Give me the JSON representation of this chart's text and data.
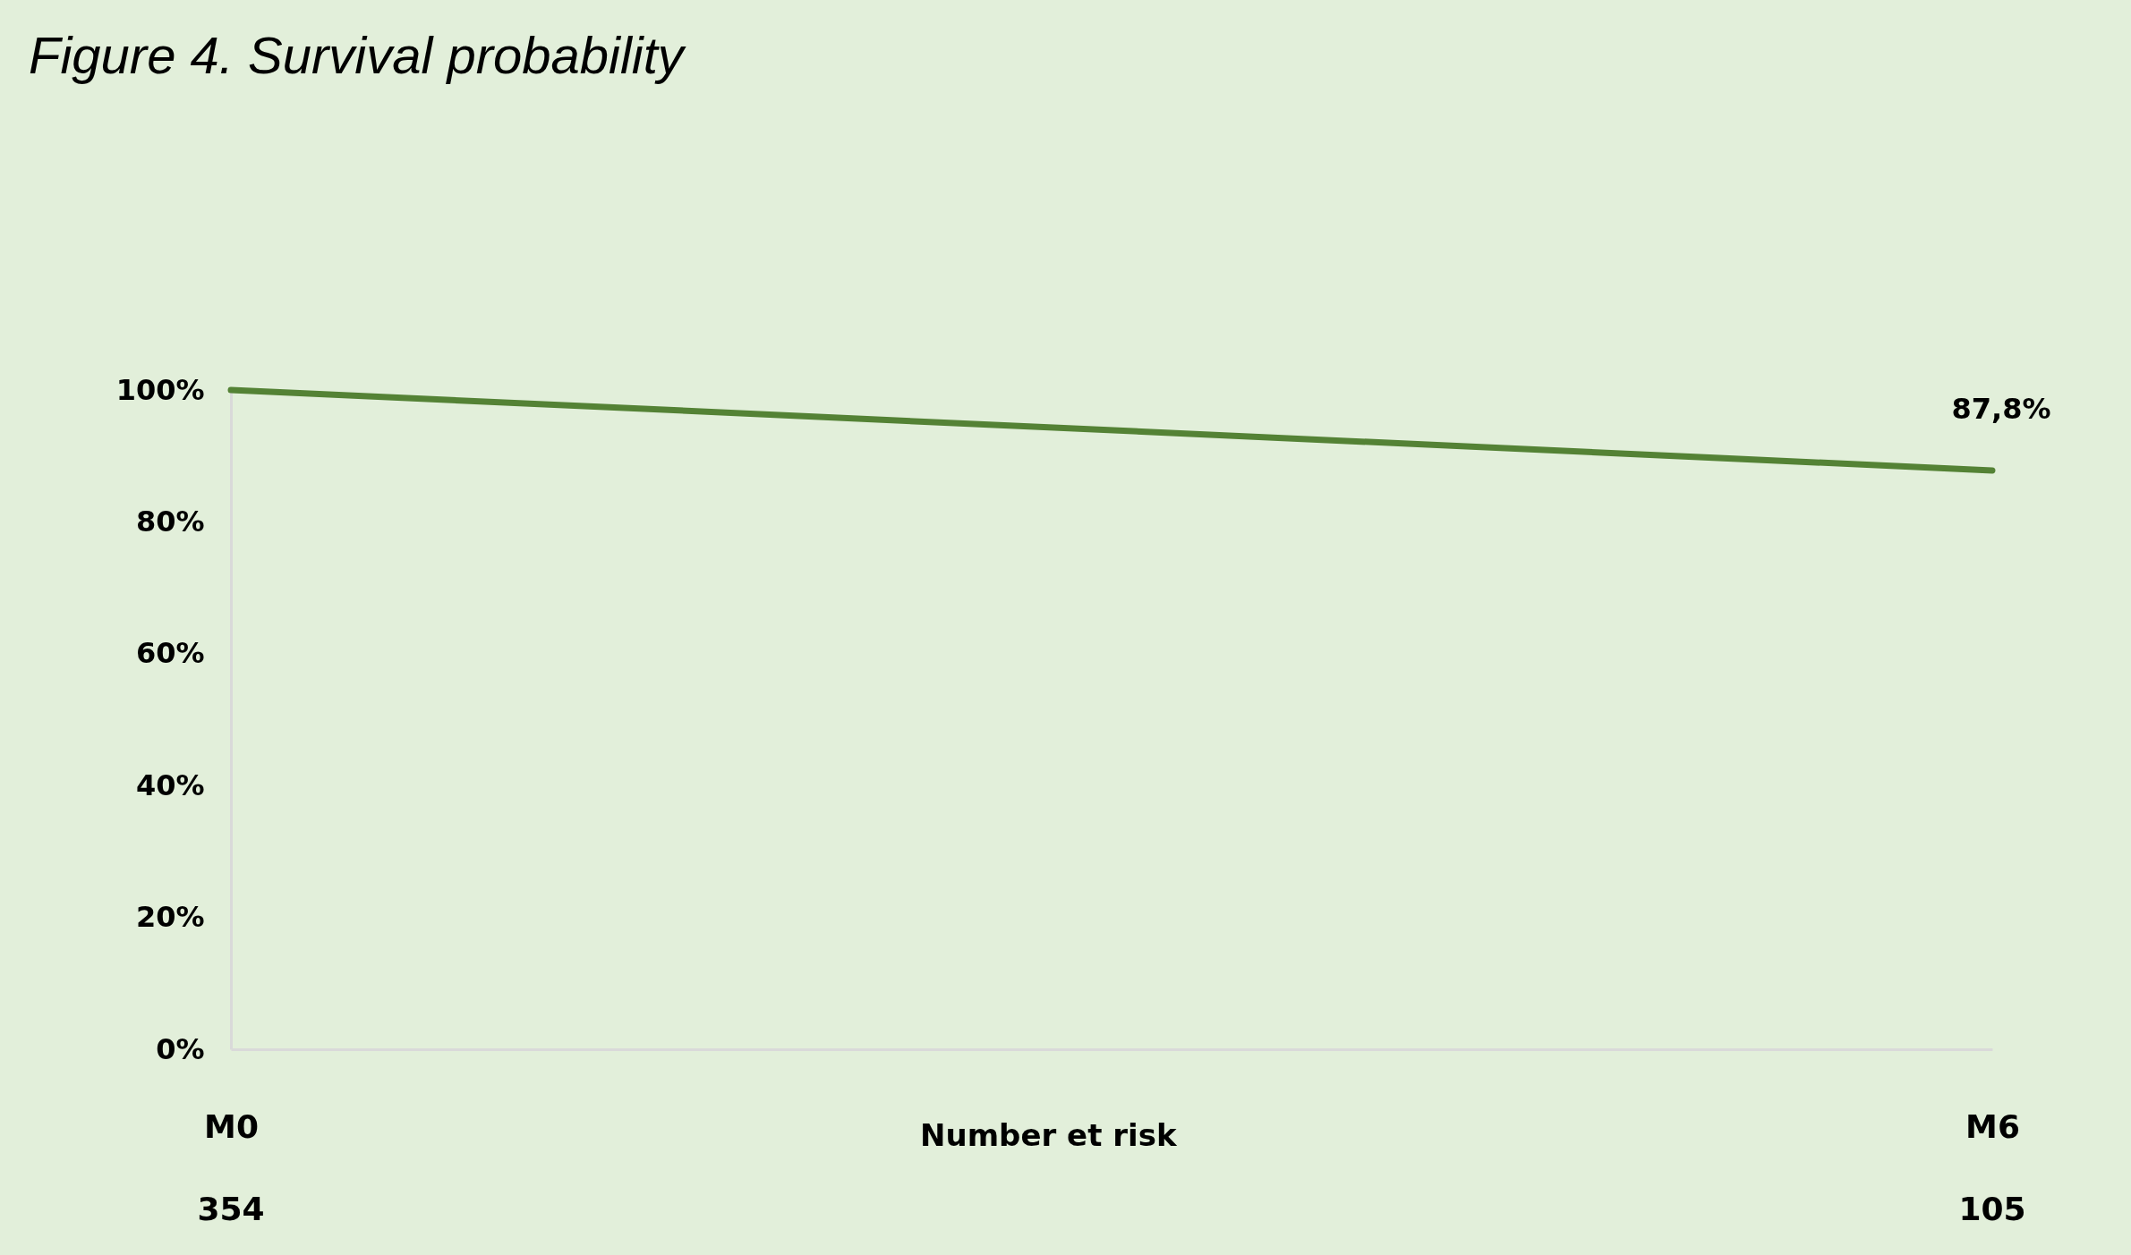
{
  "chart_data": {
    "type": "line",
    "title": "Figure 4. Survival probability",
    "categories": [
      "M0",
      "M6"
    ],
    "values": [
      100,
      87.8
    ],
    "value_labels": [
      null,
      "87,8%"
    ],
    "color": "#548235",
    "ylim": [
      0,
      100
    ],
    "yticks": [
      {
        "value": 0,
        "label": "0%"
      },
      {
        "value": 20,
        "label": "20%"
      },
      {
        "value": 40,
        "label": "40%"
      },
      {
        "value": 60,
        "label": "60%"
      },
      {
        "value": 80,
        "label": "80%"
      },
      {
        "value": 100,
        "label": "100%"
      }
    ],
    "annotations": [
      "Number et risk",
      "354",
      "105"
    ]
  }
}
